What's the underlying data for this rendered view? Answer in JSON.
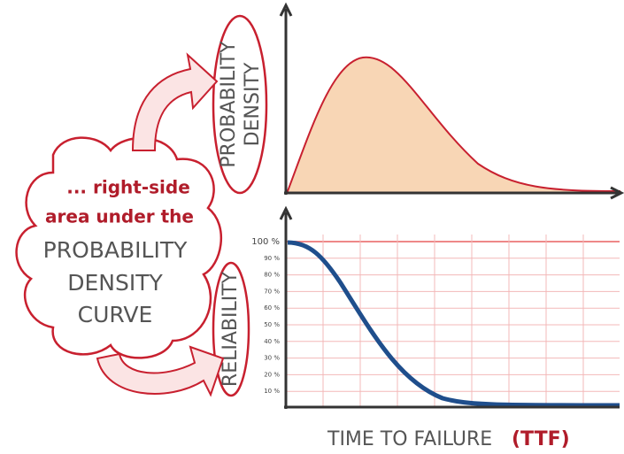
{
  "cloud": {
    "lines": [
      "... right-side",
      "area under the",
      "PROBABILITY",
      "DENSITY",
      "CURVE"
    ]
  },
  "density_label": [
    "PROBABILITY",
    "DENSITY"
  ],
  "reliability_label": "RELIABILITY",
  "reliability_ticks": [
    "100 %",
    "90 %",
    "80 %",
    "70 %",
    "60 %",
    "50 %",
    "40 %",
    "30 %",
    "20 %",
    "10 %"
  ],
  "x_label": {
    "text": "TIME TO FAILURE",
    "abbr": "(TTF)"
  }
}
